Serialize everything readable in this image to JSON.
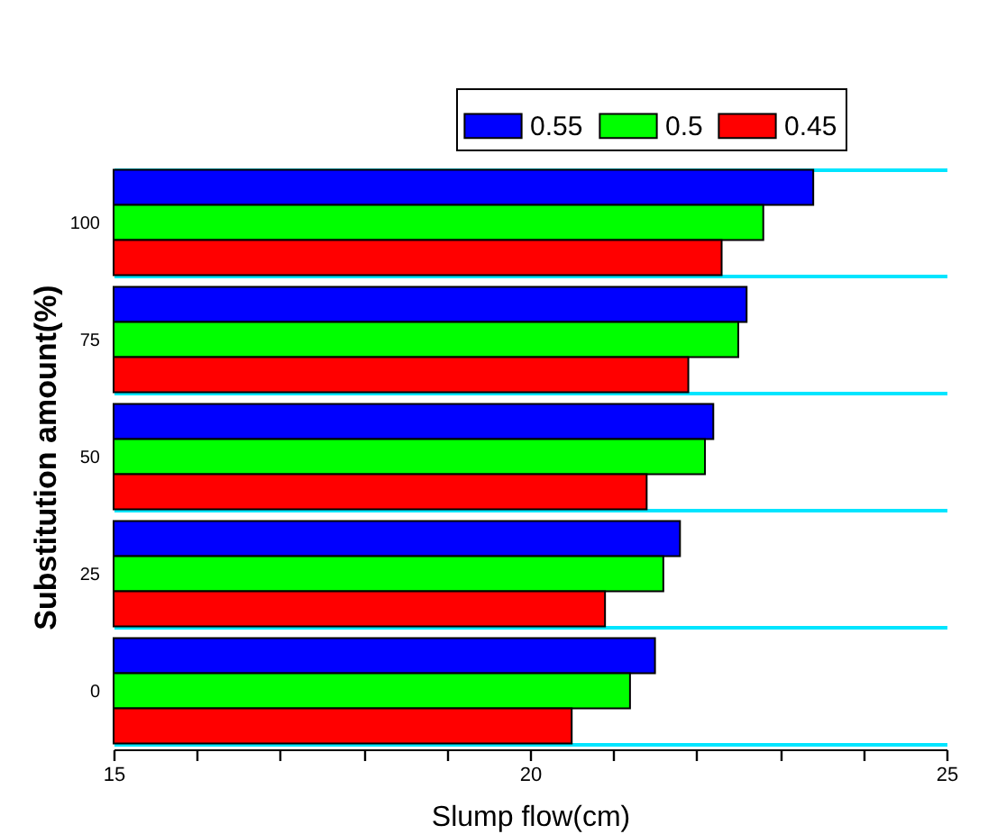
{
  "chart_data": {
    "type": "bar",
    "orientation": "horizontal",
    "xlabel": "Slump flow(cm)",
    "ylabel": "Substitution amount(%)",
    "categories": [
      "100",
      "75",
      "50",
      "25",
      "0"
    ],
    "series": [
      {
        "name": "0.55",
        "color": "#0000ff",
        "values": [
          23.4,
          22.6,
          22.2,
          21.8,
          21.5
        ]
      },
      {
        "name": "0.5",
        "color": "#00ff00",
        "values": [
          22.8,
          22.5,
          22.1,
          21.6,
          21.2
        ]
      },
      {
        "name": "0.45",
        "color": "#ff0000",
        "values": [
          22.3,
          21.9,
          21.4,
          20.9,
          20.5
        ]
      }
    ],
    "xlim": [
      15,
      25
    ],
    "xticks": [
      15,
      {
        "value": 16,
        "label": null
      },
      {
        "value": 17,
        "label": null
      },
      {
        "value": 18,
        "label": null
      },
      {
        "value": 19,
        "label": null
      },
      20,
      {
        "value": 21,
        "label": null
      },
      {
        "value": 22,
        "label": null
      },
      {
        "value": 23,
        "label": null
      },
      {
        "value": 24,
        "label": null
      },
      25
    ],
    "grid": "y",
    "legend": "top right"
  }
}
